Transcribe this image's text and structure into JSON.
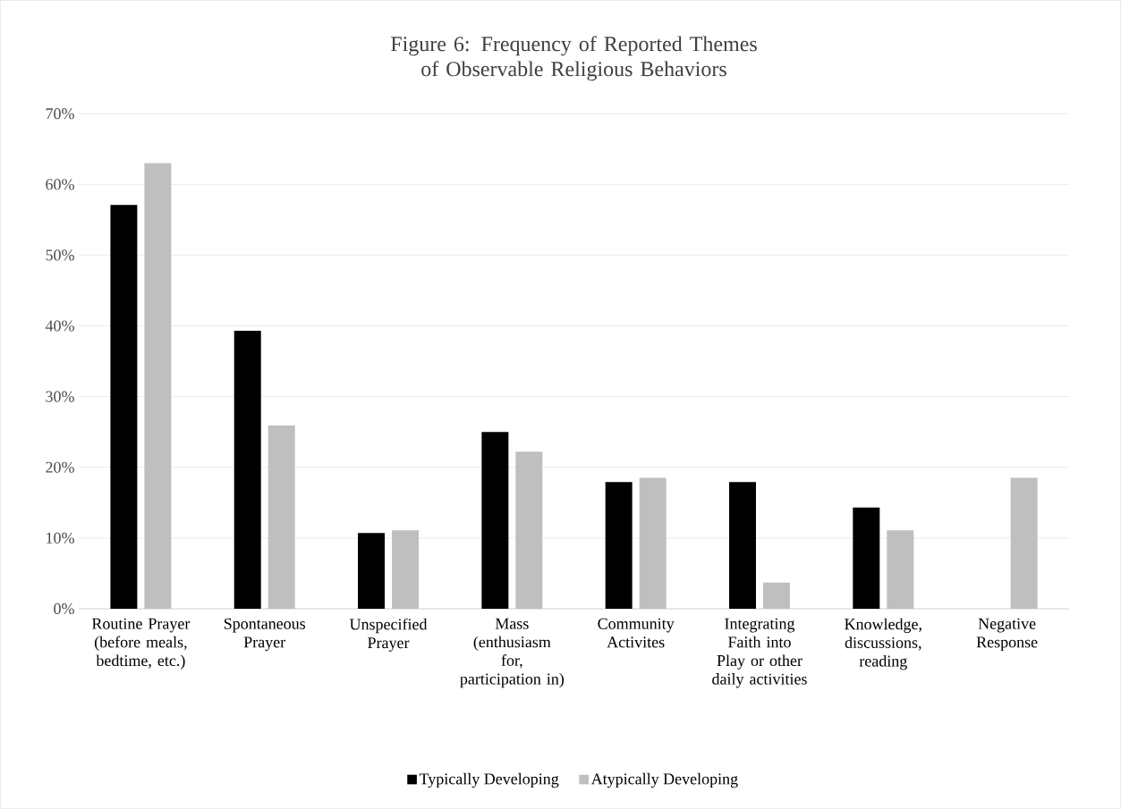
{
  "chart_data": {
    "type": "bar",
    "title": "Figure 6: Frequency of Reported Themes of Observable Religious Behaviors",
    "categories": [
      "Routine Prayer (before meals, bedtime, etc.)",
      "Spontaneous Prayer",
      "Unspecified Prayer",
      "Mass (enthusiasm for, participation in)",
      "Community Activites",
      "Integrating Faith into Play or other daily activities",
      "Knowledge, discussions, reading",
      "Negative Response"
    ],
    "series": [
      {
        "name": "Typically Developing",
        "color": "#000000",
        "values": [
          57.1,
          39.3,
          10.7,
          25.0,
          17.9,
          17.9,
          14.3,
          0
        ]
      },
      {
        "name": "Atypically Developing",
        "color": "#bfbfbf",
        "values": [
          63.0,
          25.9,
          11.1,
          22.2,
          18.5,
          3.7,
          11.1,
          18.5
        ]
      }
    ],
    "ylim": [
      0,
      70
    ],
    "yticks": [
      {
        "value": 0,
        "label": "0%"
      },
      {
        "value": 10,
        "label": "10%"
      },
      {
        "value": 20,
        "label": "20%"
      },
      {
        "value": 30,
        "label": "30%"
      },
      {
        "value": 40,
        "label": "40%"
      },
      {
        "value": 50,
        "label": "50%"
      },
      {
        "value": 60,
        "label": "60%"
      },
      {
        "value": 70,
        "label": "70%"
      }
    ],
    "grid": "y",
    "legend": "bottom"
  }
}
